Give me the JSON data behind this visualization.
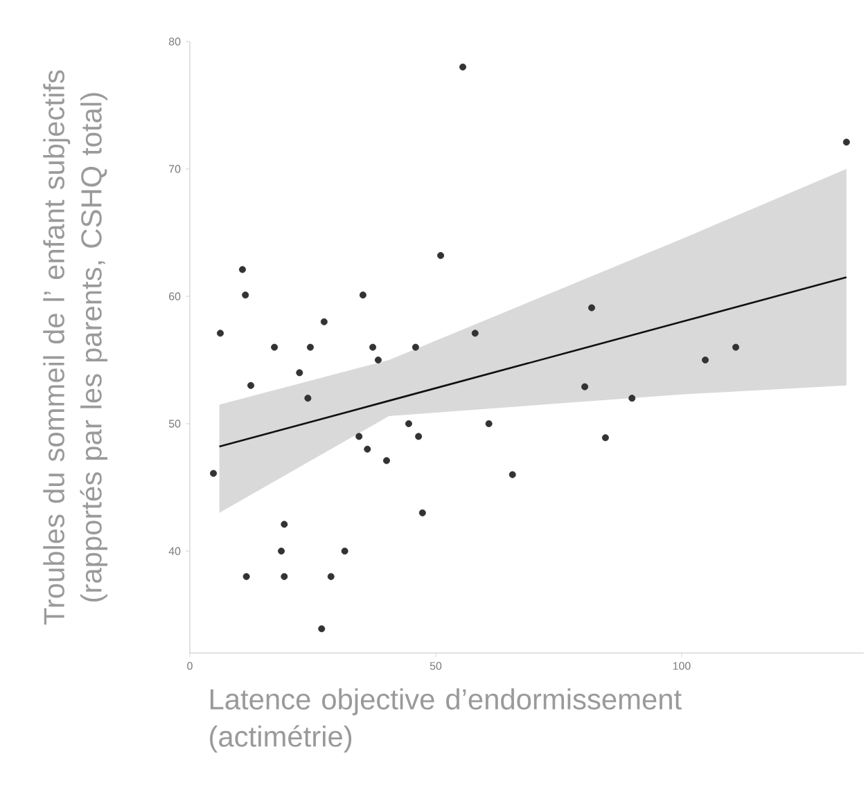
{
  "chart_data": {
    "type": "scatter",
    "xlabel": "Latence objective d’endormissement (actimétrie)",
    "ylabel": "Troubles du sommeil de l’ enfant subjectifs (rapportés par les parents, CSHQ total)",
    "xlim": [
      0,
      137
    ],
    "ylim": [
      32,
      80
    ],
    "xticks": [
      0,
      50,
      100
    ],
    "yticks": [
      40,
      50,
      60,
      70,
      80
    ],
    "grid": false,
    "series": [
      {
        "marker": "circle",
        "color": "#333333",
        "x": [
          4.8,
          6.2,
          10.7,
          11.3,
          12.4,
          17.2,
          19.2,
          18.6,
          19.2,
          11.5,
          22.3,
          24.0,
          24.5,
          27.3,
          26.8,
          28.7,
          31.5,
          35.2,
          34.4,
          36.1,
          37.2,
          38.3,
          40.0,
          44.5,
          45.9,
          46.5,
          47.3,
          51.0,
          55.5,
          58.0,
          60.8,
          65.6,
          80.3,
          81.7,
          84.5,
          89.9,
          104.8,
          111.0,
          133.5
        ],
        "values": [
          46.1,
          57.1,
          62.1,
          60.1,
          53.0,
          56.0,
          42.1,
          40.0,
          38.0,
          38.0,
          54.0,
          52.0,
          56.0,
          58.0,
          33.9,
          38.0,
          40.0,
          60.1,
          49.0,
          48.0,
          56.0,
          55.0,
          47.1,
          50.0,
          56.0,
          49.0,
          43.0,
          63.2,
          78.0,
          57.1,
          50.0,
          46.0,
          52.9,
          59.1,
          48.9,
          52.0,
          55.0,
          56.0,
          72.1
        ]
      },
      {
        "type": "line",
        "marker": "none",
        "color": "#111111",
        "x": [
          6,
          40.5,
          100,
          133.5
        ],
        "values": [
          48.2,
          51.8,
          58.0,
          61.5
        ],
        "lower": [
          43.0,
          50.6,
          52.3,
          53.0
        ],
        "upper": [
          51.5,
          55.0,
          64.5,
          70.0
        ]
      }
    ]
  }
}
